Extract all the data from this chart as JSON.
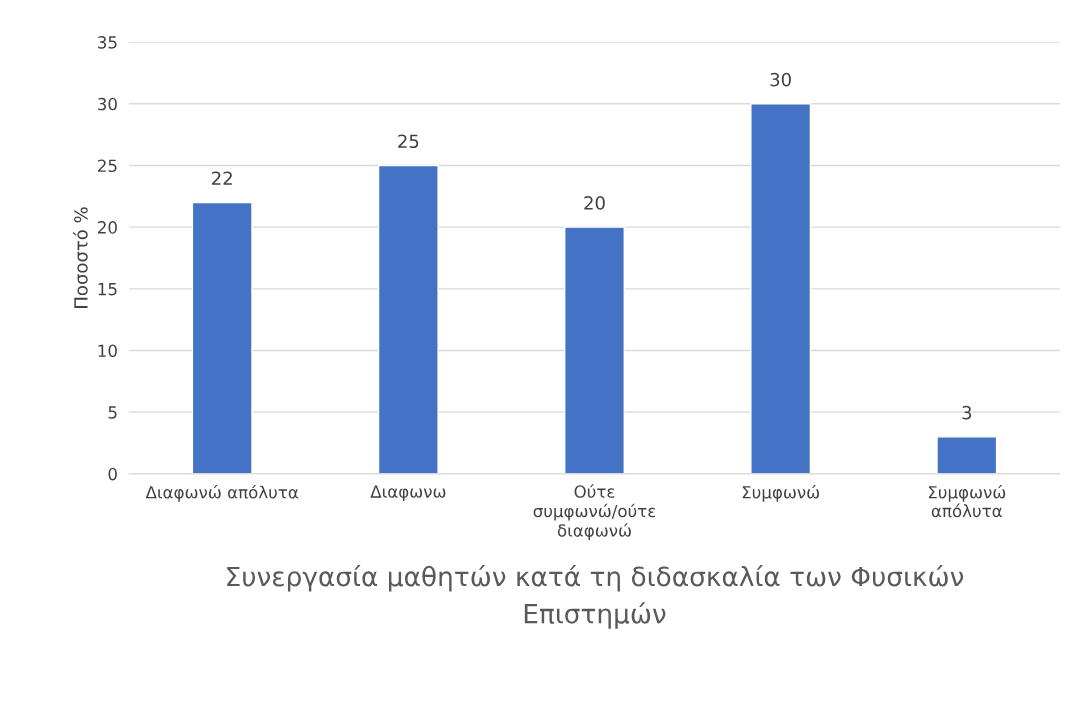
{
  "chart_data": {
    "type": "bar",
    "xlabel": "Συνεργασία μαθητών κατά τη διδασκαλία των Φυσικών\nΕπιστημών",
    "ylabel": "Ποσοστό %",
    "categories": [
      "Διαφωνώ απόλυτα",
      "Διαφωνω",
      "Ούτε\nσυμφωνώ/ούτε\nδιαφωνώ",
      "Συμφωνώ",
      "Συμφωνώ\nαπόλυτα"
    ],
    "values": [
      22,
      25,
      20,
      30,
      3
    ],
    "color": "#4472c4",
    "ylim": [
      0,
      35
    ],
    "yticks": [
      0,
      5,
      10,
      15,
      20,
      25,
      30,
      35
    ],
    "grid": "y",
    "data_labels": true
  }
}
